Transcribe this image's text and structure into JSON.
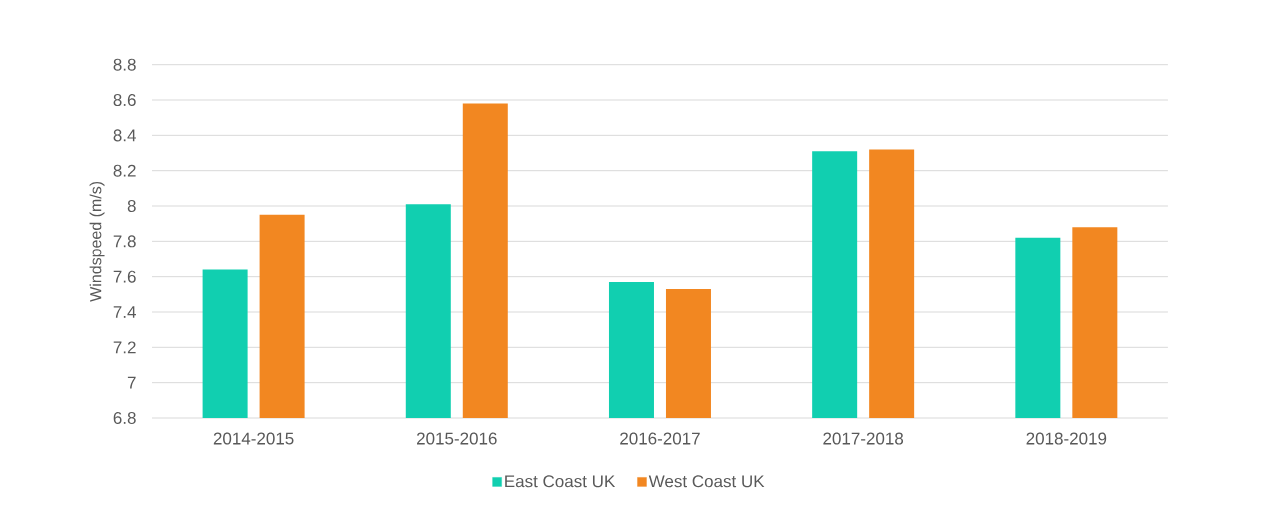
{
  "chart_data": {
    "type": "bar",
    "ylabel": "Windspeed (m/s)",
    "categories": [
      "2014-2015",
      "2015-2016",
      "2016-2017",
      "2017-2018",
      "2018-2019"
    ],
    "series": [
      {
        "name": "East Coast UK",
        "color": "#11cfb0",
        "values": [
          7.64,
          8.01,
          7.57,
          8.31,
          7.82
        ]
      },
      {
        "name": "West Coast UK",
        "color": "#f28721",
        "values": [
          7.95,
          8.58,
          7.53,
          8.32,
          7.88
        ]
      }
    ],
    "ylim": [
      6.8,
      8.8
    ],
    "yticks": [
      6.8,
      7,
      7.2,
      7.4,
      7.6,
      7.8,
      8,
      8.2,
      8.4,
      8.6,
      8.8
    ],
    "grid": "y",
    "legend": "bottom"
  }
}
